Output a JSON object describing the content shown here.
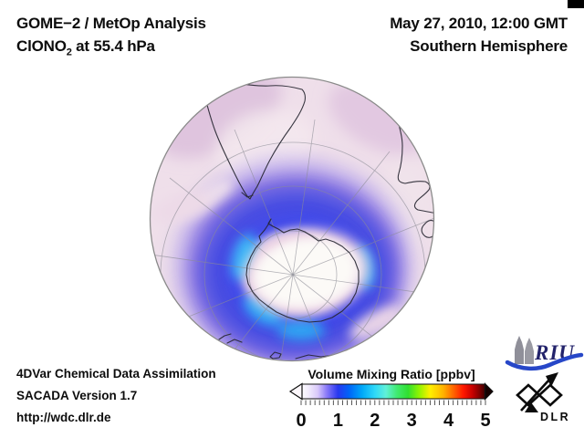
{
  "header": {
    "analysis_title": "GOME−2 / MetOp Analysis",
    "molecule": "ClONO",
    "molecule_sub": "2",
    "level": " at 55.4 hPa",
    "datetime": "May 27, 2010, 12:00 GMT",
    "region": "Southern Hemisphere"
  },
  "footer": {
    "line1": "4DVar Chemical Data Assimilation",
    "line2": "SACADA Version 1.7",
    "line3": "http://wdc.dlr.de"
  },
  "colorbar": {
    "title": "Volume Mixing Ratio [ppbv]",
    "min": 0,
    "max": 5,
    "units": "ppbv",
    "ticks": [
      "0",
      "1",
      "2",
      "3",
      "4",
      "5"
    ],
    "gradient": [
      "#ffffff",
      "#d9c9fa",
      "#8878f8",
      "#2838f0",
      "#0064f8",
      "#00a8f8",
      "#2ed8f8",
      "#60f0d8",
      "#40ea70",
      "#30e030",
      "#90f400",
      "#fff000",
      "#ffb400",
      "#ff6000",
      "#ff1800",
      "#c60000",
      "#7d0000",
      "#380000"
    ]
  },
  "logos": {
    "riu": "RIU",
    "dlr": "DLR"
  },
  "map": {
    "hemisphere": "Southern Hemisphere",
    "colors": {
      "base_pink": "#efdfea",
      "mauve": "#dcbfdc",
      "lavender": "#bcaaec",
      "violet": "#7a68e0",
      "vortex_blue": "#4a4ee2",
      "cyan": "#35c4f7",
      "white_core": "#fcfaf7",
      "coastline": "#23232e",
      "graticule": "#8c8c96"
    }
  }
}
